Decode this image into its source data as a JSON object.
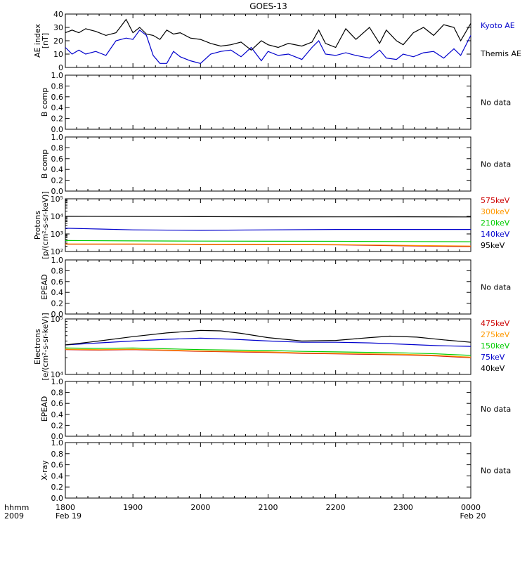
{
  "title": "GOES-13",
  "time_axis": {
    "row1_label": "hhmm",
    "row2_label": "2009",
    "ticks": [
      "1800",
      "1900",
      "2000",
      "2100",
      "2200",
      "2300",
      "0000"
    ],
    "start_date": "Feb 19",
    "end_date": "Feb 20"
  },
  "chart_data": [
    {
      "type": "line",
      "ylabel_lines": [
        "AE index",
        "[nT]"
      ],
      "ylim": [
        0,
        40
      ],
      "yticks": [
        "0",
        "10",
        "20",
        "30",
        "40"
      ],
      "x_range_hours": [
        18,
        24
      ],
      "series": [
        {
          "name": "Kyoto AE",
          "color": "#0000cc",
          "x": [
            18.0,
            18.1,
            18.2,
            18.3,
            18.45,
            18.6,
            18.75,
            18.9,
            19.0,
            19.1,
            19.2,
            19.3,
            19.4,
            19.5,
            19.6,
            19.7,
            19.85,
            20.0,
            20.15,
            20.3,
            20.45,
            20.6,
            20.75,
            20.9,
            21.0,
            21.15,
            21.3,
            21.5,
            21.65,
            21.75,
            21.85,
            22.0,
            22.15,
            22.3,
            22.5,
            22.65,
            22.75,
            22.9,
            23.0,
            23.15,
            23.3,
            23.45,
            23.6,
            23.75,
            23.85,
            24.0
          ],
          "y": [
            15,
            10,
            13,
            10,
            12,
            9,
            20,
            22,
            21,
            28,
            24,
            9,
            3,
            3,
            12,
            8,
            5,
            3,
            10,
            12,
            13,
            8,
            15,
            5,
            12,
            9,
            10,
            6,
            15,
            20,
            10,
            9,
            11,
            9,
            7,
            13,
            7,
            6,
            10,
            8,
            11,
            12,
            7,
            14,
            9,
            24
          ]
        },
        {
          "name": "Themis AE",
          "color": "#000000",
          "x": [
            18.0,
            18.1,
            18.2,
            18.3,
            18.45,
            18.6,
            18.75,
            18.9,
            19.0,
            19.1,
            19.2,
            19.3,
            19.4,
            19.5,
            19.6,
            19.7,
            19.85,
            20.0,
            20.15,
            20.3,
            20.45,
            20.6,
            20.75,
            20.9,
            21.0,
            21.15,
            21.3,
            21.5,
            21.65,
            21.75,
            21.85,
            22.0,
            22.15,
            22.3,
            22.5,
            22.65,
            22.75,
            22.9,
            23.0,
            23.15,
            23.3,
            23.45,
            23.6,
            23.75,
            23.85,
            24.0
          ],
          "y": [
            26,
            28,
            26,
            29,
            27,
            24,
            26,
            36,
            26,
            30,
            25,
            24,
            21,
            28,
            25,
            26,
            22,
            21,
            18,
            16,
            17,
            19,
            13,
            20,
            17,
            15,
            18,
            16,
            19,
            28,
            18,
            15,
            29,
            21,
            30,
            18,
            28,
            20,
            17,
            26,
            30,
            24,
            32,
            30,
            20,
            33
          ]
        }
      ]
    },
    {
      "type": "line",
      "ylabel_lines": [
        "B comp"
      ],
      "ylim": [
        0,
        1
      ],
      "yticks": [
        "0.0",
        "0.2",
        "0.4",
        "0.6",
        "0.8",
        "1.0"
      ],
      "status": "No data",
      "series": []
    },
    {
      "type": "line",
      "ylabel_lines": [
        "B comp"
      ],
      "ylim": [
        0,
        1
      ],
      "yticks": [
        "0.0",
        "0.2",
        "0.4",
        "0.6",
        "0.8",
        "1.0"
      ],
      "status": "No data",
      "series": []
    },
    {
      "type": "line",
      "ylabel_lines": [
        "Protons",
        "[p/(cm²-s-sr-keV)]"
      ],
      "ylim": [
        100,
        100000
      ],
      "log_scale": true,
      "yticks": [
        "10²",
        "10³",
        "10⁴",
        "10⁵"
      ],
      "series": [
        {
          "name": "575keV",
          "color": "#cc0000",
          "x": [
            18,
            19,
            20,
            21,
            22,
            23,
            24
          ],
          "y": [
            260,
            260,
            250,
            250,
            240,
            210,
            190
          ]
        },
        {
          "name": "300keV",
          "color": "#ff9900",
          "x": [
            18,
            19,
            20,
            21,
            22,
            23,
            24
          ],
          "y": [
            270,
            270,
            260,
            260,
            250,
            225,
            205
          ]
        },
        {
          "name": "210keV",
          "color": "#00cc00",
          "x": [
            18,
            19,
            20,
            21,
            22,
            23,
            24
          ],
          "y": [
            420,
            400,
            390,
            385,
            380,
            370,
            360
          ]
        },
        {
          "name": "140keV",
          "color": "#0000cc",
          "x": [
            18,
            18.5,
            19,
            20,
            21,
            22,
            23,
            24
          ],
          "y": [
            2100,
            1900,
            1700,
            1600,
            1700,
            1800,
            1800,
            1800
          ]
        },
        {
          "name": "95keV",
          "color": "#000000",
          "x": [
            18,
            19,
            20,
            21,
            22,
            23,
            24
          ],
          "y": [
            10000,
            9800,
            9600,
            9500,
            9400,
            9500,
            9300
          ]
        }
      ]
    },
    {
      "type": "line",
      "ylabel_lines": [
        "EPEAD"
      ],
      "ylim": [
        0,
        1
      ],
      "yticks": [
        "0.0",
        "0.2",
        "0.4",
        "0.6",
        "0.8",
        "1.0"
      ],
      "status": "No data",
      "series": []
    },
    {
      "type": "line",
      "ylabel_lines": [
        "Electrons",
        "[e/(cm²-s-sr-keV)]"
      ],
      "ylim": [
        10000,
        100000
      ],
      "log_scale": true,
      "yticks": [
        "10⁴",
        "10⁵"
      ],
      "series": [
        {
          "name": "475keV",
          "color": "#cc0000",
          "x": [
            18,
            18.5,
            19,
            19.5,
            20,
            20.5,
            21,
            21.5,
            22,
            22.5,
            23,
            23.5,
            24
          ],
          "y": [
            28000,
            27500,
            28000,
            27000,
            26000,
            25500,
            25000,
            24000,
            23500,
            23000,
            22500,
            21500,
            20000
          ]
        },
        {
          "name": "275keV",
          "color": "#ff9900",
          "x": [
            18,
            18.5,
            19,
            19.5,
            20,
            20.5,
            21,
            21.5,
            22,
            22.5,
            23,
            23.5,
            24
          ],
          "y": [
            28500,
            28000,
            28500,
            27500,
            26500,
            26000,
            25500,
            24500,
            24000,
            23500,
            23000,
            22000,
            20500
          ]
        },
        {
          "name": "150keV",
          "color": "#00cc00",
          "x": [
            18,
            18.5,
            19,
            19.5,
            20,
            20.5,
            21,
            21.5,
            22,
            22.5,
            23,
            23.5,
            24
          ],
          "y": [
            30000,
            29500,
            30000,
            29000,
            28000,
            27500,
            27000,
            26000,
            25500,
            25000,
            24500,
            23500,
            22000
          ]
        },
        {
          "name": "75keV",
          "color": "#0000cc",
          "x": [
            18,
            18.5,
            19,
            19.5,
            20,
            20.5,
            21,
            21.5,
            22,
            22.5,
            23,
            23.5,
            24
          ],
          "y": [
            34000,
            37000,
            40000,
            43000,
            45000,
            43000,
            40000,
            38000,
            38000,
            37000,
            35000,
            33000,
            32000
          ]
        },
        {
          "name": "40keV",
          "color": "#000000",
          "x": [
            18,
            18.5,
            19,
            19.5,
            20,
            20.3,
            20.6,
            21,
            21.5,
            22,
            22.5,
            22.8,
            23.2,
            23.6,
            24
          ],
          "y": [
            34000,
            40000,
            48000,
            56000,
            62000,
            61000,
            55000,
            46000,
            40000,
            41000,
            46000,
            49000,
            47000,
            42000,
            38000
          ]
        }
      ]
    },
    {
      "type": "line",
      "ylabel_lines": [
        "EPEAD"
      ],
      "ylim": [
        0,
        1
      ],
      "yticks": [
        "0.0",
        "0.2",
        "0.4",
        "0.6",
        "0.8",
        "1.0"
      ],
      "status": "No data",
      "series": []
    },
    {
      "type": "line",
      "ylabel_lines": [
        "X-ray"
      ],
      "ylim": [
        0,
        1
      ],
      "yticks": [
        "0.0",
        "0.2",
        "0.4",
        "0.6",
        "0.8",
        "1.0"
      ],
      "status": "No data",
      "series": []
    }
  ]
}
